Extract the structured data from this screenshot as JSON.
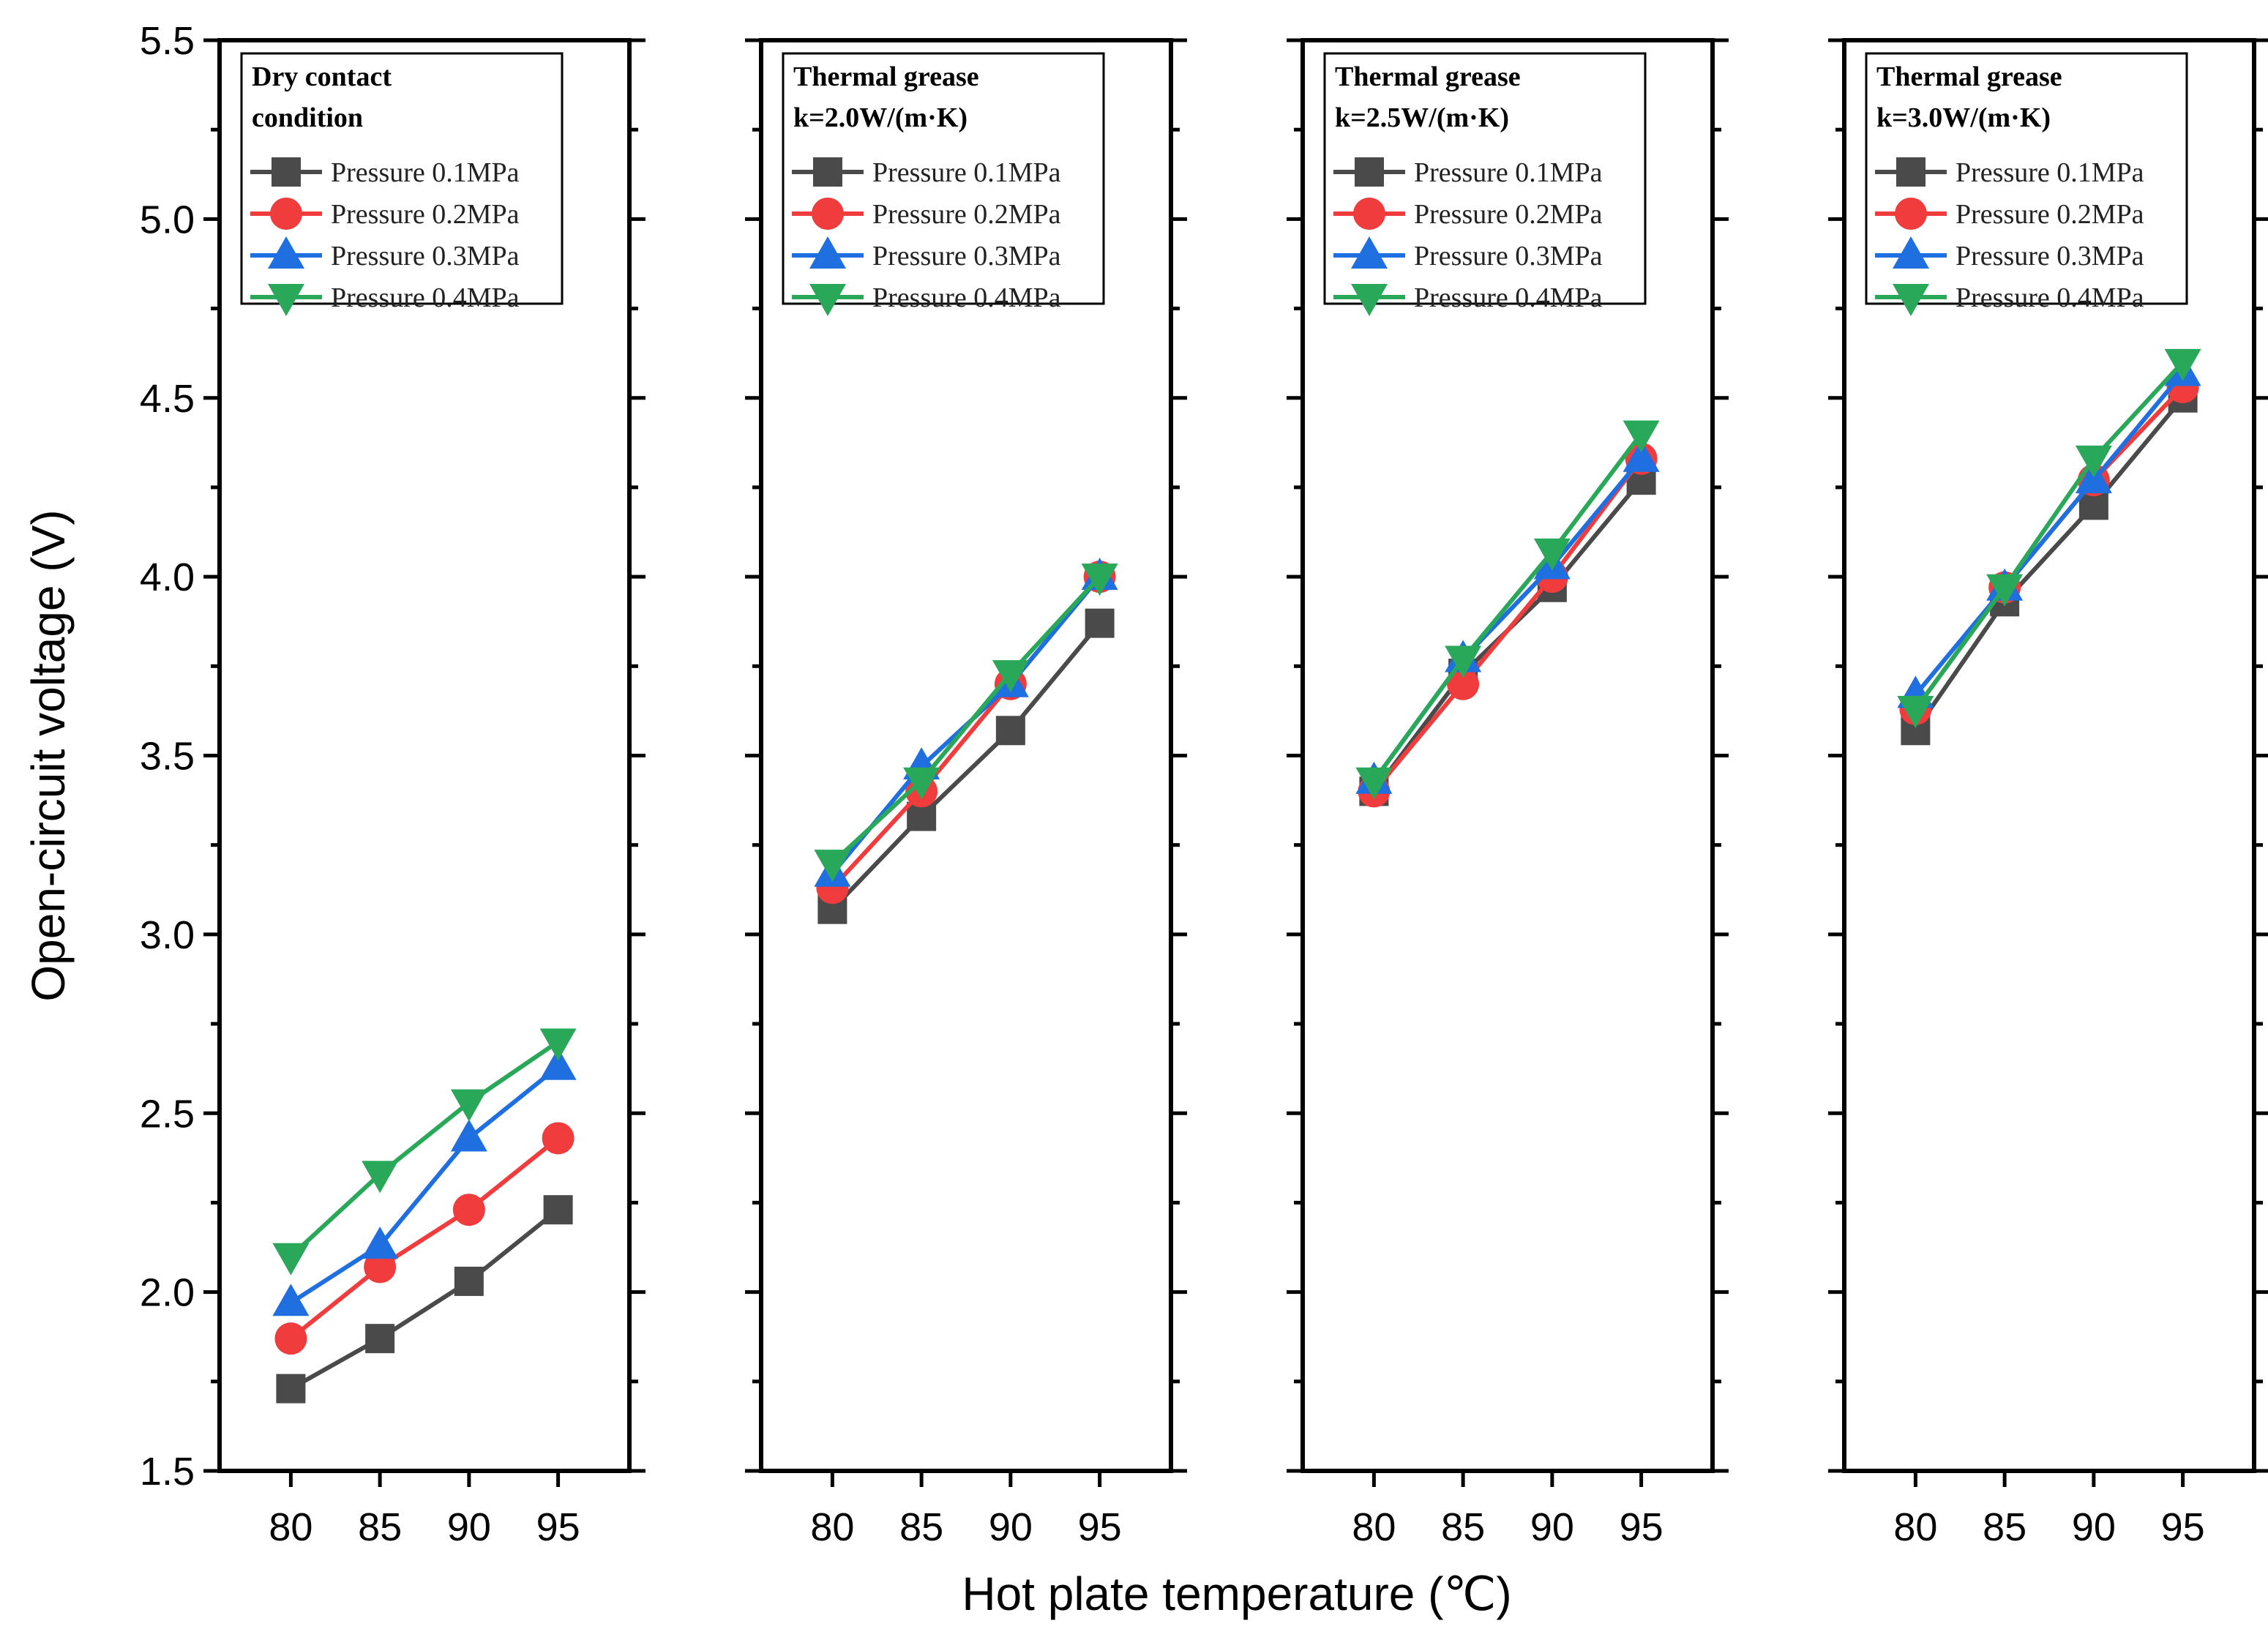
{
  "chart_data": {
    "type": "line",
    "ylabel": "Open-circuit voltage (V)",
    "xlabel": "Hot plate temperature (℃)",
    "ylim": [
      1.5,
      5.5
    ],
    "yticks": [
      1.5,
      2.0,
      2.5,
      3.0,
      3.5,
      4.0,
      4.5,
      5.0,
      5.5
    ],
    "ytick_labels": [
      "1.5",
      "2.0",
      "2.5",
      "3.0",
      "3.5",
      "4.0",
      "4.5",
      "5.0",
      "5.5"
    ],
    "x": [
      80,
      85,
      90,
      95
    ],
    "xtick_labels": [
      "80",
      "85",
      "90",
      "95"
    ],
    "xlim": [
      76,
      99
    ],
    "grid": false,
    "legend_position": "top-left",
    "series_styles": [
      {
        "name": "Pressure 0.1MPa",
        "color": "#4a4a4a",
        "marker": "square"
      },
      {
        "name": "Pressure 0.2MPa",
        "color": "#f03c3c",
        "marker": "circle"
      },
      {
        "name": "Pressure 0.3MPa",
        "color": "#1f6fe0",
        "marker": "triangle-up"
      },
      {
        "name": "Pressure 0.4MPa",
        "color": "#2aa85a",
        "marker": "triangle-down"
      }
    ],
    "panels": [
      {
        "title_lines": [
          "Dry contact",
          "condition"
        ],
        "series": [
          {
            "name": "Pressure 0.1MPa",
            "values": [
              1.73,
              1.87,
              2.03,
              2.23
            ]
          },
          {
            "name": "Pressure 0.2MPa",
            "values": [
              1.87,
              2.07,
              2.23,
              2.43
            ]
          },
          {
            "name": "Pressure 0.3MPa",
            "values": [
              1.97,
              2.13,
              2.43,
              2.63
            ]
          },
          {
            "name": "Pressure 0.4MPa",
            "values": [
              2.1,
              2.33,
              2.53,
              2.7
            ]
          }
        ]
      },
      {
        "title_lines": [
          "Thermal grease",
          "k=2.0W/(m·K)"
        ],
        "series": [
          {
            "name": "Pressure 0.1MPa",
            "values": [
              3.07,
              3.33,
              3.57,
              3.87
            ]
          },
          {
            "name": "Pressure 0.2MPa",
            "values": [
              3.13,
              3.4,
              3.7,
              4.0
            ]
          },
          {
            "name": "Pressure 0.3MPa",
            "values": [
              3.17,
              3.47,
              3.7,
              4.0
            ]
          },
          {
            "name": "Pressure 0.4MPa",
            "values": [
              3.2,
              3.43,
              3.73,
              4.0
            ]
          }
        ]
      },
      {
        "title_lines": [
          "Thermal grease",
          "k=2.5W/(m·K)"
        ],
        "series": [
          {
            "name": "Pressure 0.1MPa",
            "values": [
              3.4,
              3.73,
              3.97,
              4.27
            ]
          },
          {
            "name": "Pressure 0.2MPa",
            "values": [
              3.4,
              3.7,
              4.0,
              4.33
            ]
          },
          {
            "name": "Pressure 0.3MPa",
            "values": [
              3.43,
              3.77,
              4.03,
              4.33
            ]
          },
          {
            "name": "Pressure 0.4MPa",
            "values": [
              3.43,
              3.77,
              4.07,
              4.4
            ]
          }
        ]
      },
      {
        "title_lines": [
          "Thermal grease",
          "k=3.0W/(m·K)"
        ],
        "series": [
          {
            "name": "Pressure 0.1MPa",
            "values": [
              3.57,
              3.93,
              4.2,
              4.5
            ]
          },
          {
            "name": "Pressure 0.2MPa",
            "values": [
              3.63,
              3.97,
              4.27,
              4.53
            ]
          },
          {
            "name": "Pressure 0.3MPa",
            "values": [
              3.67,
              3.97,
              4.27,
              4.57
            ]
          },
          {
            "name": "Pressure 0.4MPa",
            "values": [
              3.63,
              3.97,
              4.33,
              4.6
            ]
          }
        ]
      }
    ]
  }
}
